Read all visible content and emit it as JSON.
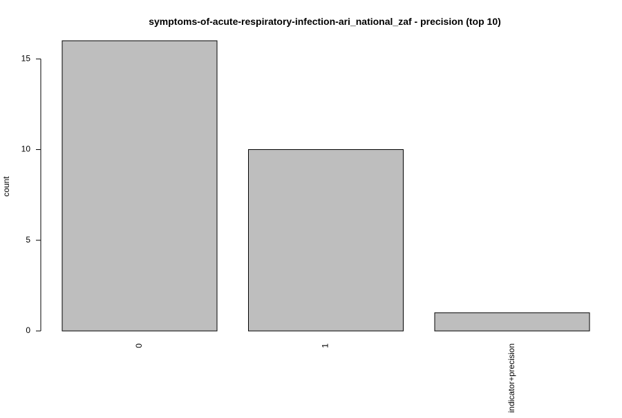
{
  "chart_data": {
    "type": "bar",
    "title": "symptoms-of-acute-respiratory-infection-ari_national_zaf - precision (top 10)",
    "xlabel": "",
    "ylabel": "count",
    "categories": [
      "0",
      "1",
      "indicator+precision"
    ],
    "values": [
      16,
      10,
      1
    ],
    "ylim": [
      0,
      16
    ],
    "yticks": [
      0,
      5,
      10,
      15
    ],
    "bar_color": "#bebebe",
    "bar_stroke": "#000000",
    "grid": false,
    "legend": "none"
  }
}
